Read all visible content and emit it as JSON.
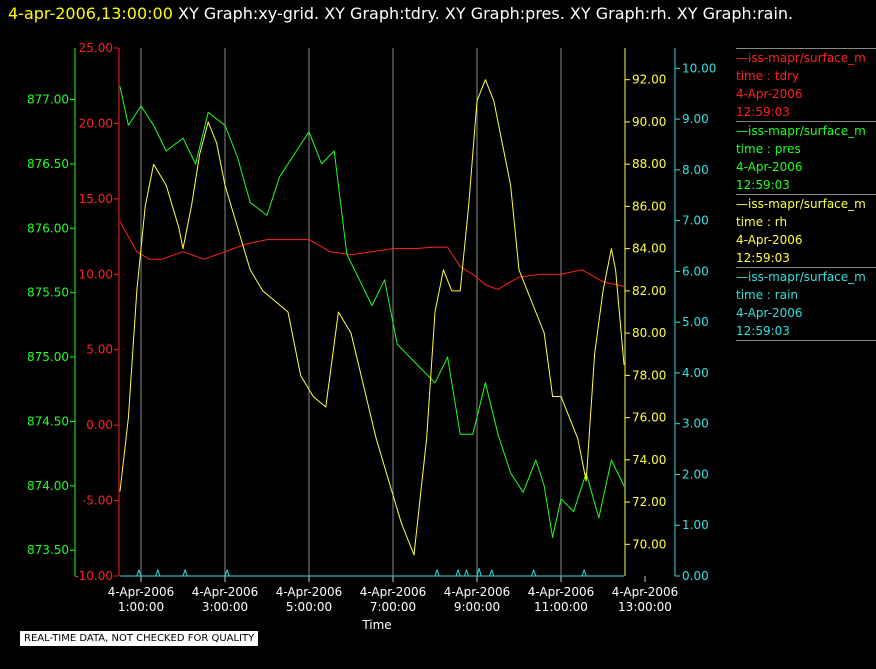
{
  "header": {
    "timestamp": "4-apr-2006,13:00:00",
    "rest": "  XY Graph:xy-grid.  XY Graph:tdry.  XY Graph:pres.  XY Graph:rh.  XY Graph:rain."
  },
  "notice": "REAL-TIME DATA, NOT CHECKED FOR QUALITY",
  "legend": [
    {
      "source": "—iss-mapr/surface_m",
      "field": "time : tdry",
      "date": "4-Apr-2006",
      "time": "12:59:03",
      "color": "#ff2020"
    },
    {
      "source": "—iss-mapr/surface_m",
      "field": "time : pres",
      "date": "4-Apr-2006",
      "time": "12:59:03",
      "color": "#20ff20"
    },
    {
      "source": "—iss-mapr/surface_m",
      "field": "time : rh",
      "date": "4-Apr-2006",
      "time": "12:59:03",
      "color": "#ffff40"
    },
    {
      "source": "—iss-mapr/surface_m",
      "field": "time : rain",
      "date": "4-Apr-2006",
      "time": "12:59:03",
      "color": "#30e0e0"
    }
  ],
  "chart_data": {
    "type": "line",
    "xlabel": "Time",
    "x_range": [
      0.5,
      12.5
    ],
    "x_ticks": [
      {
        "h": 1,
        "date": "4-Apr-2006",
        "time": "1:00:00"
      },
      {
        "h": 3,
        "date": "4-Apr-2006",
        "time": "3:00:00"
      },
      {
        "h": 5,
        "date": "4-Apr-2006",
        "time": "5:00:00"
      },
      {
        "h": 7,
        "date": "4-Apr-2006",
        "time": "7:00:00"
      },
      {
        "h": 9,
        "date": "4-Apr-2006",
        "time": "9:00:00"
      },
      {
        "h": 11,
        "date": "4-Apr-2006",
        "time": "11:00:00"
      },
      {
        "h": 13,
        "date": "4-Apr-2006",
        "time": "13:00:00"
      }
    ],
    "axes": {
      "tdry": {
        "color": "#ff2020",
        "range": [
          -10,
          25
        ],
        "ticks": [
          "-10.00",
          "-5.00",
          "0.00",
          "5.00",
          "10.00",
          "15.00",
          "20.00",
          "25.00"
        ]
      },
      "pres": {
        "color": "#20ff20",
        "range": [
          873.3,
          877.4
        ],
        "ticks": [
          "873.50",
          "874.00",
          "874.50",
          "875.00",
          "875.50",
          "876.00",
          "876.50",
          "877.00"
        ]
      },
      "rh": {
        "color": "#ffff40",
        "range": [
          68.5,
          93.5
        ],
        "ticks": [
          "70.00",
          "72.00",
          "74.00",
          "76.00",
          "78.00",
          "80.00",
          "82.00",
          "84.00",
          "86.00",
          "88.00",
          "90.00",
          "92.00"
        ]
      },
      "rain": {
        "color": "#30e0e0",
        "range": [
          0,
          10.4
        ],
        "ticks": [
          "0.00",
          "1.00",
          "2.00",
          "3.00",
          "4.00",
          "5.00",
          "6.00",
          "7.00",
          "8.00",
          "9.00",
          "10.00"
        ]
      }
    },
    "series": [
      {
        "name": "tdry",
        "axis": "tdry",
        "x": [
          0.5,
          0.7,
          0.9,
          1.2,
          1.5,
          2.0,
          2.5,
          3.0,
          3.5,
          4.0,
          4.5,
          5.0,
          5.5,
          6.0,
          6.5,
          7.0,
          7.5,
          8.0,
          8.3,
          8.6,
          8.9,
          9.2,
          9.5,
          9.8,
          10.0,
          10.5,
          11.0,
          11.5,
          12.0,
          12.5
        ],
        "y": [
          13.5,
          12.5,
          11.5,
          11.0,
          11.0,
          11.5,
          11.0,
          11.5,
          12.0,
          12.3,
          12.3,
          12.3,
          11.5,
          11.3,
          11.5,
          11.7,
          11.7,
          11.8,
          11.8,
          10.5,
          10.0,
          9.3,
          9.0,
          9.5,
          9.8,
          10.0,
          10.0,
          10.3,
          9.5,
          9.2
        ]
      },
      {
        "name": "pres",
        "axis": "pres",
        "x": [
          0.5,
          0.7,
          1.0,
          1.3,
          1.6,
          2.0,
          2.3,
          2.6,
          3.0,
          3.3,
          3.6,
          4.0,
          4.3,
          4.7,
          5.0,
          5.3,
          5.6,
          5.9,
          6.2,
          6.5,
          6.8,
          7.1,
          7.4,
          7.7,
          8.0,
          8.3,
          8.6,
          8.9,
          9.2,
          9.5,
          9.8,
          10.1,
          10.4,
          10.6,
          10.8,
          11.0,
          11.3,
          11.6,
          11.9,
          12.2,
          12.5
        ],
        "y": [
          877.1,
          876.8,
          876.95,
          876.8,
          876.6,
          876.7,
          876.5,
          876.9,
          876.8,
          876.55,
          876.2,
          876.1,
          876.4,
          876.6,
          876.75,
          876.5,
          876.6,
          875.8,
          875.6,
          875.4,
          875.6,
          875.1,
          875.0,
          874.9,
          874.8,
          875.0,
          874.4,
          874.4,
          874.8,
          874.4,
          874.1,
          873.95,
          874.2,
          874.0,
          873.6,
          873.9,
          873.8,
          874.1,
          873.75,
          874.2,
          874.0
        ]
      },
      {
        "name": "rh",
        "axis": "rh",
        "x": [
          0.5,
          0.7,
          0.9,
          1.1,
          1.3,
          1.6,
          1.9,
          2.0,
          2.2,
          2.4,
          2.6,
          2.8,
          3.0,
          3.3,
          3.6,
          3.9,
          4.2,
          4.5,
          4.8,
          5.1,
          5.4,
          5.7,
          6.0,
          6.3,
          6.6,
          6.9,
          7.2,
          7.5,
          7.8,
          8.0,
          8.2,
          8.4,
          8.6,
          8.8,
          9.0,
          9.2,
          9.4,
          9.6,
          9.8,
          10.0,
          10.2,
          10.4,
          10.6,
          10.8,
          11.0,
          11.2,
          11.4,
          11.6,
          11.8,
          12.0,
          12.2,
          12.3,
          12.5
        ],
        "y": [
          72.5,
          76,
          82,
          86,
          88,
          87,
          85,
          84,
          86,
          88.5,
          90,
          89,
          87,
          85,
          83,
          82,
          81.5,
          81,
          78,
          77,
          76.5,
          81,
          80,
          77.5,
          75,
          73,
          71,
          69.5,
          75,
          81,
          83,
          82,
          82,
          86,
          91,
          92,
          91,
          89,
          87,
          83,
          82,
          81,
          80,
          77,
          77,
          76,
          75,
          73,
          79,
          82,
          84,
          83,
          78.5
        ]
      },
      {
        "name": "rain",
        "axis": "rain",
        "x": [
          0.5,
          0.9,
          0.95,
          1.0,
          1.35,
          1.4,
          1.45,
          2.0,
          2.05,
          2.1,
          3.0,
          3.05,
          3.1,
          8.0,
          8.05,
          8.1,
          8.5,
          8.55,
          8.6,
          8.7,
          8.75,
          8.8,
          9.0,
          9.05,
          9.1,
          9.3,
          9.35,
          9.4,
          10.3,
          10.35,
          10.4,
          11.5,
          11.55,
          11.6,
          12.5
        ],
        "y": [
          0,
          0,
          0.12,
          0,
          0,
          0.12,
          0,
          0,
          0.12,
          0,
          0,
          0.12,
          0,
          0,
          0.12,
          0,
          0,
          0.12,
          0,
          0,
          0.12,
          0,
          0,
          0.15,
          0,
          0,
          0.12,
          0,
          0,
          0.12,
          0,
          0,
          0.12,
          0,
          0
        ]
      }
    ]
  }
}
